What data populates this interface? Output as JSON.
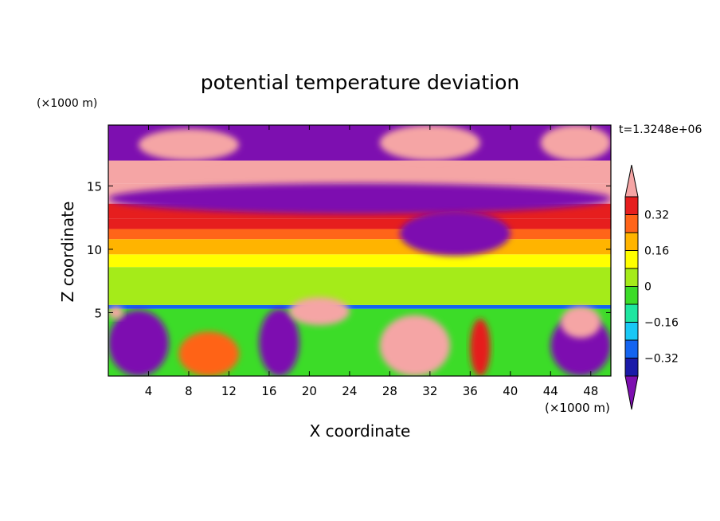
{
  "chart_data": {
    "type": "heatmap",
    "title": "potential temperature deviation",
    "xlabel": "X coordinate",
    "ylabel": "Z coordinate",
    "x_unit": "(×1000 m)",
    "y_unit": "(×1000 m)",
    "time_label": "t=1.3248e+06",
    "xlim": [
      0,
      50
    ],
    "ylim": [
      0,
      19.8
    ],
    "x_ticks": [
      4,
      8,
      12,
      16,
      20,
      24,
      28,
      32,
      36,
      40,
      44,
      48
    ],
    "y_ticks": [
      5,
      10,
      15
    ],
    "colorbar": {
      "levels": [
        -0.4,
        -0.32,
        -0.24,
        -0.16,
        -0.08,
        0,
        0.08,
        0.16,
        0.24,
        0.32,
        0.4
      ],
      "tick_values": [
        -0.32,
        -0.16,
        0,
        0.16,
        0.32
      ],
      "tick_labels": [
        "−0.32",
        "−0.16",
        "0",
        "0.16",
        "0.32"
      ],
      "colors": [
        "#7d0fb0",
        "#1a1aa8",
        "#1464f0",
        "#19c8f5",
        "#1ee6a0",
        "#3cdc28",
        "#a5eb19",
        "#ffff00",
        "#ffb400",
        "#ff6419",
        "#e61e1e",
        "#f5a5a5"
      ],
      "extend": "both"
    },
    "horizontal_bands": [
      {
        "z": [
          0.0,
          5.3
        ],
        "value": -0.04
      },
      {
        "z": [
          5.3,
          5.6
        ],
        "value": -0.28
      },
      {
        "z": [
          5.6,
          8.6
        ],
        "value": 0.02
      },
      {
        "z": [
          8.6,
          9.6
        ],
        "value": 0.1
      },
      {
        "z": [
          9.6,
          10.8
        ],
        "value": 0.18
      },
      {
        "z": [
          10.8,
          11.6
        ],
        "value": 0.26
      },
      {
        "z": [
          11.6,
          12.4
        ],
        "value": 0.32
      },
      {
        "z": [
          12.4,
          13.6
        ],
        "value": 0.36
      },
      {
        "z": [
          13.6,
          15.2
        ],
        "value": 0.42
      },
      {
        "z": [
          15.2,
          17.0
        ],
        "value": 0.42
      },
      {
        "z": [
          17.0,
          19.8
        ],
        "value": -0.42
      }
    ],
    "features": [
      {
        "x": [
          0,
          6
        ],
        "z": [
          0,
          5.2
        ],
        "value": -0.42
      },
      {
        "x": [
          7,
          13
        ],
        "z": [
          0,
          3.5
        ],
        "value": 0.26
      },
      {
        "x": [
          15,
          19
        ],
        "z": [
          0,
          5.3
        ],
        "value": -0.42
      },
      {
        "x": [
          27,
          34
        ],
        "z": [
          0,
          4.8
        ],
        "value": 0.42
      },
      {
        "x": [
          36,
          38
        ],
        "z": [
          0,
          4.5
        ],
        "value": 0.36
      },
      {
        "x": [
          44,
          50
        ],
        "z": [
          0,
          4.8
        ],
        "value": -0.42
      },
      {
        "x": [
          45,
          49
        ],
        "z": [
          3,
          5.5
        ],
        "value": 0.42
      },
      {
        "x": [
          0,
          1.5
        ],
        "z": [
          4.5,
          5.5
        ],
        "value": 0.42
      },
      {
        "x": [
          18,
          24
        ],
        "z": [
          4,
          6.2
        ],
        "value": 0.42
      },
      {
        "x": [
          0,
          50
        ],
        "z": [
          12.8,
          15.2
        ],
        "value": -0.42
      },
      {
        "x": [
          29,
          40
        ],
        "z": [
          9.5,
          13
        ],
        "value": -0.42
      },
      {
        "x": [
          3,
          13
        ],
        "z": [
          17,
          19.5
        ],
        "value": 0.42
      },
      {
        "x": [
          27,
          37
        ],
        "z": [
          17,
          19.8
        ],
        "value": 0.42
      },
      {
        "x": [
          43,
          50
        ],
        "z": [
          17,
          19.8
        ],
        "value": 0.42
      }
    ]
  }
}
